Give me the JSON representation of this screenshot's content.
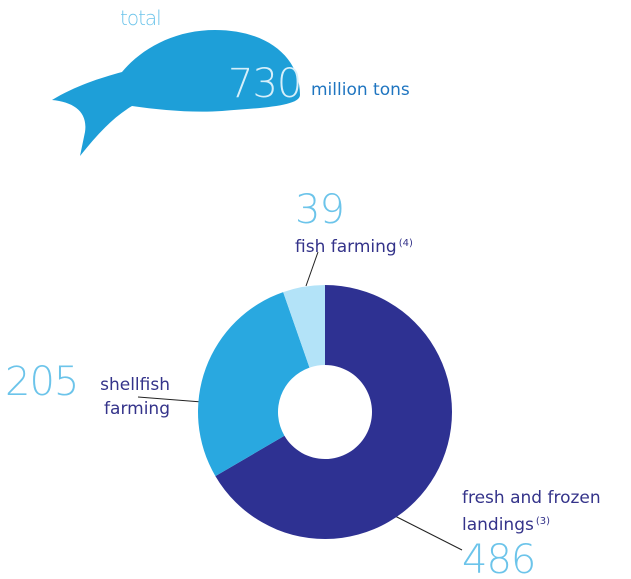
{
  "chart_data": {
    "type": "pie",
    "total_label": "total",
    "total": 730,
    "total_unit": "million tons",
    "categories": [
      "fresh and frozen landings",
      "shellfish farming",
      "fish farming"
    ],
    "footnotes": [
      "(3)",
      null,
      "(4)"
    ],
    "values": [
      486,
      205,
      39
    ],
    "colors": [
      "#2e3192",
      "#29a8e0",
      "#b3e3f8"
    ]
  }
}
